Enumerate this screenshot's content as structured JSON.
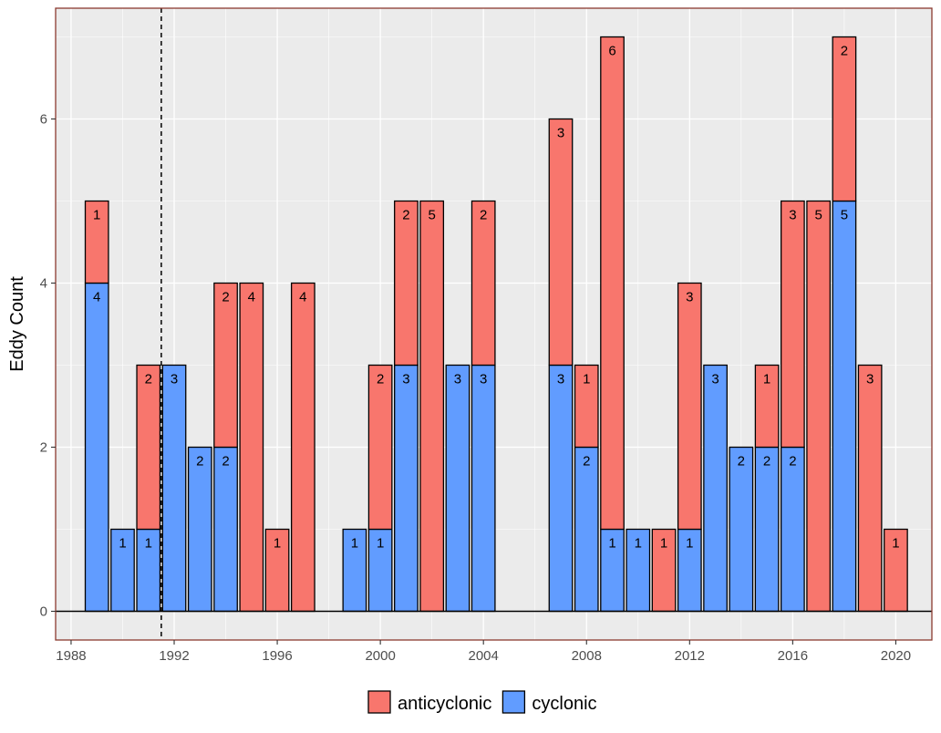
{
  "chart_data": {
    "type": "bar",
    "stacked": true,
    "title": "",
    "xlabel": "",
    "ylabel": "Eddy Count",
    "xlim": [
      1987.4,
      2021.4
    ],
    "ylim": [
      -0.35,
      7.35
    ],
    "x_ticks": [
      1988,
      1992,
      1996,
      2000,
      2004,
      2008,
      2012,
      2016,
      2020
    ],
    "y_ticks": [
      0,
      2,
      4,
      6
    ],
    "grid": true,
    "reference_line": {
      "x": 1991.5,
      "style": "dashed"
    },
    "legend_position": "bottom",
    "series": [
      {
        "name": "cyclonic",
        "color": "#619CFF",
        "points": [
          {
            "year": 1989,
            "value": 4
          },
          {
            "year": 1990,
            "value": 1
          },
          {
            "year": 1991,
            "value": 1
          },
          {
            "year": 1992,
            "value": 3
          },
          {
            "year": 1993,
            "value": 2
          },
          {
            "year": 1994,
            "value": 2
          },
          {
            "year": 1999,
            "value": 1
          },
          {
            "year": 2000,
            "value": 1
          },
          {
            "year": 2001,
            "value": 3
          },
          {
            "year": 2003,
            "value": 3
          },
          {
            "year": 2004,
            "value": 3
          },
          {
            "year": 2007,
            "value": 3
          },
          {
            "year": 2008,
            "value": 2
          },
          {
            "year": 2009,
            "value": 1
          },
          {
            "year": 2010,
            "value": 1
          },
          {
            "year": 2012,
            "value": 1
          },
          {
            "year": 2013,
            "value": 3
          },
          {
            "year": 2014,
            "value": 2
          },
          {
            "year": 2015,
            "value": 2
          },
          {
            "year": 2016,
            "value": 2
          },
          {
            "year": 2018,
            "value": 5
          }
        ]
      },
      {
        "name": "anticyclonic",
        "color": "#F8766D",
        "points": [
          {
            "year": 1989,
            "value": 1
          },
          {
            "year": 1991,
            "value": 2
          },
          {
            "year": 1994,
            "value": 2
          },
          {
            "year": 1995,
            "value": 4
          },
          {
            "year": 1996,
            "value": 1
          },
          {
            "year": 1997,
            "value": 4
          },
          {
            "year": 2000,
            "value": 2
          },
          {
            "year": 2001,
            "value": 2
          },
          {
            "year": 2002,
            "value": 5
          },
          {
            "year": 2004,
            "value": 2
          },
          {
            "year": 2007,
            "value": 3
          },
          {
            "year": 2008,
            "value": 1
          },
          {
            "year": 2009,
            "value": 6
          },
          {
            "year": 2011,
            "value": 1
          },
          {
            "year": 2012,
            "value": 3
          },
          {
            "year": 2015,
            "value": 1
          },
          {
            "year": 2016,
            "value": 3
          },
          {
            "year": 2017,
            "value": 5
          },
          {
            "year": 2018,
            "value": 2
          },
          {
            "year": 2019,
            "value": 3
          },
          {
            "year": 2020,
            "value": 1
          }
        ]
      }
    ],
    "legend_order": [
      "anticyclonic",
      "cyclonic"
    ]
  }
}
